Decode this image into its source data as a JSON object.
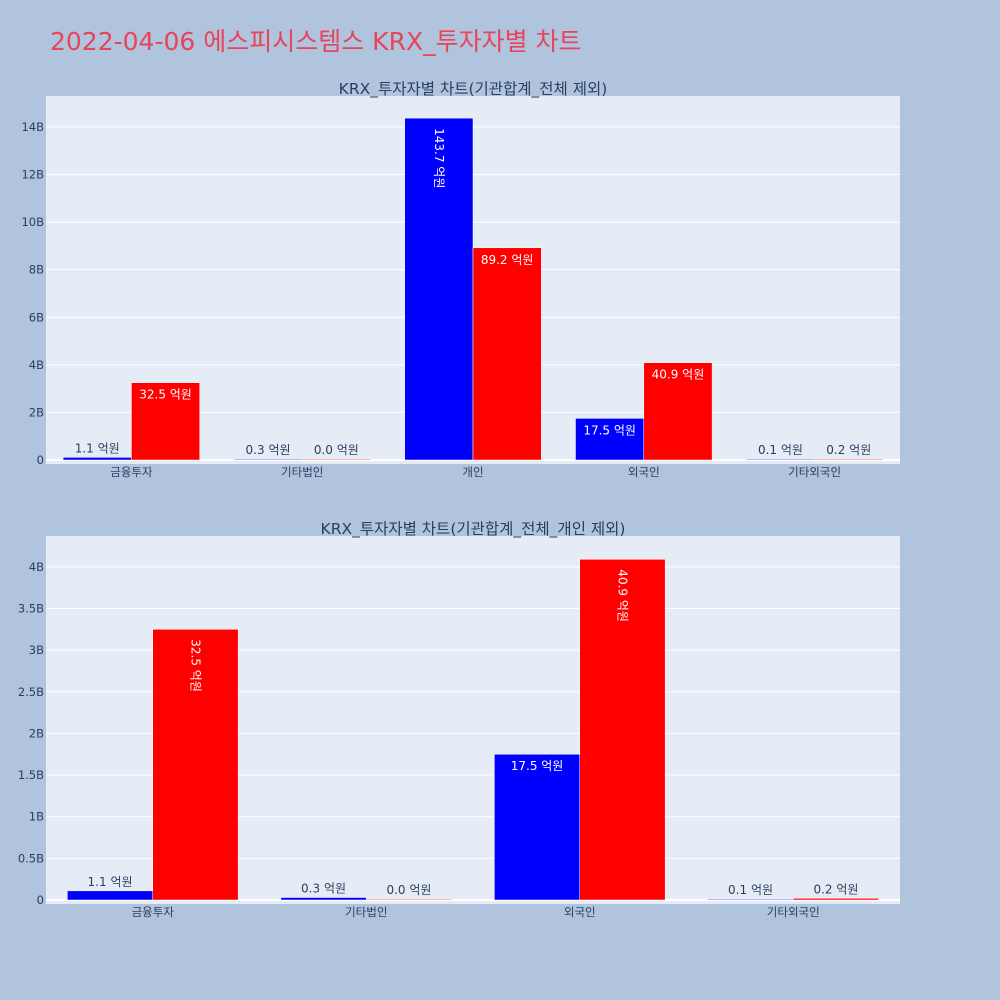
{
  "page_title": "2022-04-06 에스피시스템스 KRX_투자자별 차트",
  "colors": {
    "buy": "#0000ff",
    "sell": "#ff0000",
    "plot_bg": "#e5ecf6",
    "page_bg": "#b0c4de",
    "title": "#e8445a"
  },
  "chart_data": [
    {
      "type": "bar",
      "title": "KRX_투자자별 차트(기관합계_전체 제외)",
      "categories": [
        "금융투자",
        "기타법인",
        "개인",
        "외국인",
        "기타외국인"
      ],
      "series": [
        {
          "values": [
            0.11,
            0.03,
            14.37,
            1.75,
            0.01
          ],
          "labels": [
            "1.1 억원",
            "0.3 억원",
            "143.7 억원",
            "17.5 억원",
            "0.1 억원"
          ]
        },
        {
          "values": [
            3.25,
            0.0,
            8.92,
            4.09,
            0.02
          ],
          "labels": [
            "32.5 억원",
            "0.0 억원",
            "89.2 억원",
            "40.9 억원",
            "0.2 억원"
          ]
        }
      ],
      "ylim": [
        0,
        15.3
      ],
      "yticks": [
        0,
        2,
        4,
        6,
        8,
        10,
        12,
        14
      ],
      "ytick_labels": [
        "0",
        "2B",
        "4B",
        "6B",
        "8B",
        "10B",
        "12B",
        "14B"
      ],
      "grid": true
    },
    {
      "type": "bar",
      "title": "KRX_투자자별 차트(기관합계_전체_개인 제외)",
      "categories": [
        "금융투자",
        "기타법인",
        "외국인",
        "기타외국인"
      ],
      "series": [
        {
          "values": [
            0.11,
            0.03,
            1.75,
            0.01
          ],
          "labels": [
            "1.1 억원",
            "0.3 억원",
            "17.5 억원",
            "0.1 억원"
          ]
        },
        {
          "values": [
            3.25,
            0.0,
            4.09,
            0.02
          ],
          "labels": [
            "32.5 억원",
            "0.0 억원",
            "40.9 억원",
            "0.2 억원"
          ]
        }
      ],
      "ylim": [
        0,
        4.37
      ],
      "yticks": [
        0,
        0.5,
        1,
        1.5,
        2,
        2.5,
        3,
        3.5,
        4
      ],
      "ytick_labels": [
        "0",
        "0.5B",
        "1B",
        "1.5B",
        "2B",
        "2.5B",
        "3B",
        "3.5B",
        "4B"
      ],
      "grid": true
    }
  ]
}
